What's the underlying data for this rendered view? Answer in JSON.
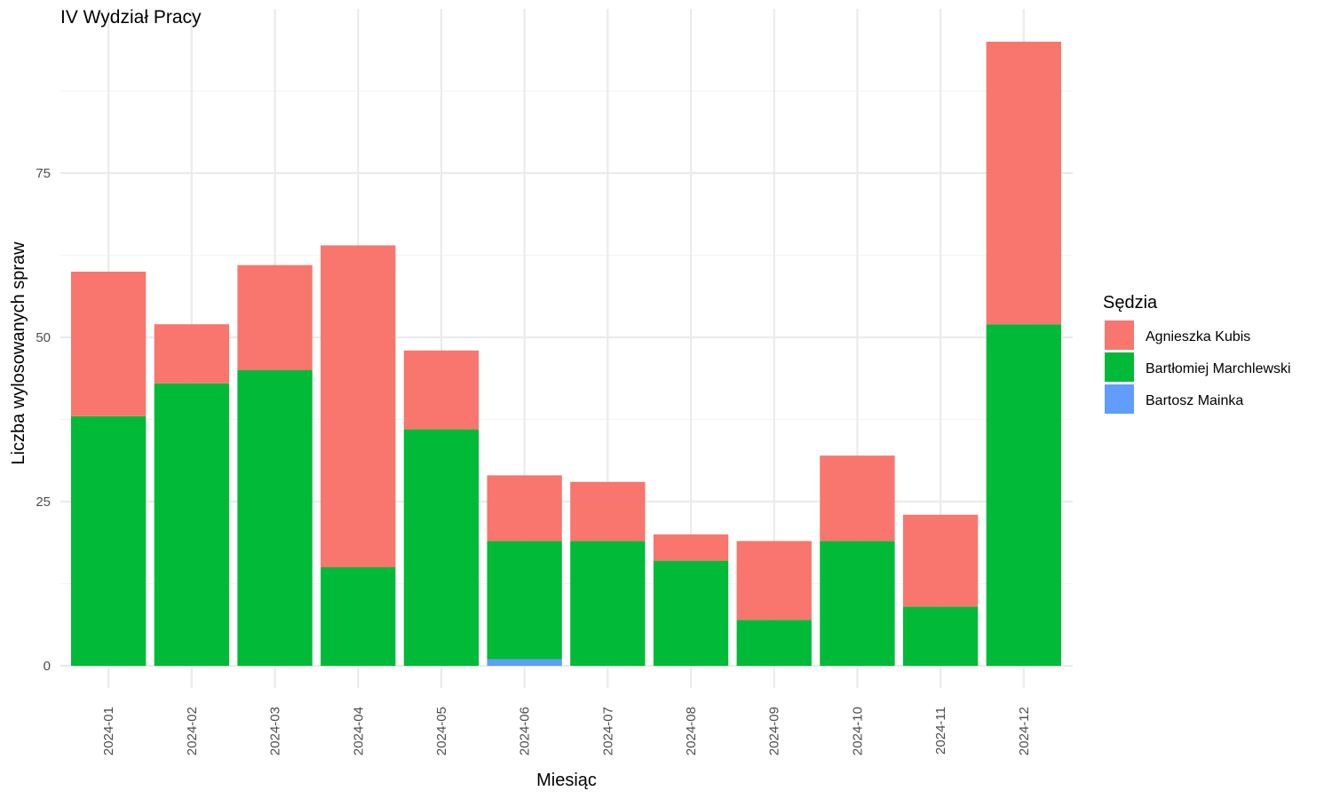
{
  "chart_data": {
    "type": "bar",
    "stacked": true,
    "title": "IV Wydział Pracy",
    "xlabel": "Miesiąc",
    "ylabel": "Liczba wylosowanych spraw",
    "ylim": [
      0,
      95
    ],
    "yticks": [
      0,
      25,
      50,
      75
    ],
    "grid": true,
    "legend_title": "Sędzia",
    "legend_position": "right",
    "categories": [
      "2024-01",
      "2024-02",
      "2024-03",
      "2024-04",
      "2024-05",
      "2024-06",
      "2024-07",
      "2024-08",
      "2024-09",
      "2024-10",
      "2024-11",
      "2024-12"
    ],
    "series": [
      {
        "name": "Agnieszka Kubis",
        "color": "#F8766D",
        "values": [
          22,
          9,
          16,
          49,
          12,
          10,
          9,
          4,
          12,
          13,
          14,
          43
        ]
      },
      {
        "name": "Bartłomiej Marchlewski",
        "color": "#00BA38",
        "values": [
          38,
          43,
          45,
          15,
          36,
          18,
          19,
          16,
          7,
          19,
          9,
          52
        ]
      },
      {
        "name": "Bartosz Mainka",
        "color": "#619CFF",
        "values": [
          0,
          0,
          0,
          0,
          0,
          1,
          0,
          0,
          0,
          0,
          0,
          0
        ]
      }
    ],
    "stack_order_bottom_to_top": [
      "Bartosz Mainka",
      "Bartłomiej Marchlewski",
      "Agnieszka Kubis"
    ]
  }
}
